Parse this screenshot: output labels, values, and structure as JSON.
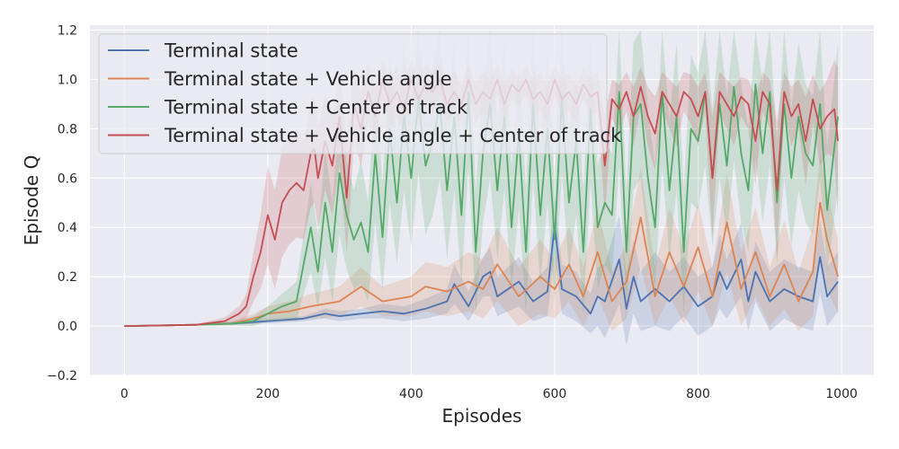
{
  "chart_data": {
    "type": "line",
    "title": "",
    "xlabel": "Episodes",
    "ylabel": "Episode Q",
    "xlim": [
      -48,
      1045
    ],
    "ylim": [
      -0.2,
      1.22
    ],
    "xticks": [
      0,
      200,
      400,
      600,
      800,
      1000
    ],
    "yticks": [
      -0.2,
      0.0,
      0.2,
      0.4,
      0.6,
      0.8,
      1.0,
      1.2
    ],
    "ytick_labels": [
      "−0.2",
      "0.0",
      "0.2",
      "0.4",
      "0.6",
      "0.8",
      "1.0",
      "1.2"
    ],
    "grid": true,
    "legend_position": "top-left",
    "background": "#eaeaf2",
    "series": [
      {
        "name": "Terminal state",
        "color": "#4c72b0",
        "x": [
          0,
          100,
          150,
          200,
          250,
          280,
          300,
          330,
          360,
          390,
          420,
          450,
          460,
          480,
          500,
          510,
          520,
          550,
          570,
          590,
          600,
          610,
          630,
          650,
          660,
          670,
          690,
          700,
          710,
          720,
          740,
          760,
          780,
          800,
          820,
          830,
          840,
          860,
          870,
          880,
          900,
          920,
          940,
          960,
          970,
          980,
          995
        ],
        "y": [
          0.0,
          0.005,
          0.01,
          0.02,
          0.03,
          0.05,
          0.04,
          0.05,
          0.06,
          0.05,
          0.07,
          0.1,
          0.17,
          0.08,
          0.2,
          0.22,
          0.12,
          0.18,
          0.1,
          0.14,
          0.41,
          0.15,
          0.12,
          0.05,
          0.12,
          0.1,
          0.27,
          0.07,
          0.2,
          0.1,
          0.15,
          0.1,
          0.16,
          0.08,
          0.12,
          0.22,
          0.15,
          0.27,
          0.1,
          0.22,
          0.1,
          0.15,
          0.12,
          0.1,
          0.28,
          0.12,
          0.18
        ],
        "band": [
          0.0,
          0.003,
          0.005,
          0.01,
          0.01,
          0.02,
          0.02,
          0.02,
          0.03,
          0.03,
          0.04,
          0.05,
          0.08,
          0.06,
          0.08,
          0.1,
          0.08,
          0.1,
          0.08,
          0.1,
          0.12,
          0.1,
          0.1,
          0.08,
          0.12,
          0.15,
          0.18,
          0.15,
          0.15,
          0.12,
          0.15,
          0.12,
          0.12,
          0.12,
          0.12,
          0.15,
          0.12,
          0.15,
          0.12,
          0.12,
          0.12,
          0.12,
          0.12,
          0.12,
          0.15,
          0.12,
          0.12
        ]
      },
      {
        "name": "Terminal state + Vehicle angle",
        "color": "#dd8452",
        "x": [
          0,
          100,
          150,
          180,
          200,
          230,
          260,
          300,
          330,
          360,
          400,
          420,
          450,
          480,
          500,
          520,
          550,
          580,
          600,
          620,
          640,
          660,
          680,
          700,
          720,
          740,
          760,
          780,
          800,
          820,
          840,
          860,
          880,
          900,
          920,
          940,
          960,
          970,
          980,
          995
        ],
        "y": [
          0.0,
          0.005,
          0.01,
          0.03,
          0.05,
          0.06,
          0.08,
          0.1,
          0.16,
          0.1,
          0.12,
          0.16,
          0.14,
          0.18,
          0.15,
          0.25,
          0.12,
          0.2,
          0.15,
          0.25,
          0.12,
          0.3,
          0.1,
          0.18,
          0.44,
          0.12,
          0.3,
          0.16,
          0.32,
          0.12,
          0.42,
          0.15,
          0.3,
          0.12,
          0.25,
          0.1,
          0.22,
          0.5,
          0.35,
          0.2
        ],
        "band": [
          0.0,
          0.003,
          0.008,
          0.02,
          0.03,
          0.04,
          0.05,
          0.06,
          0.08,
          0.06,
          0.08,
          0.1,
          0.1,
          0.12,
          0.12,
          0.15,
          0.12,
          0.15,
          0.12,
          0.15,
          0.12,
          0.18,
          0.12,
          0.15,
          0.2,
          0.12,
          0.18,
          0.15,
          0.18,
          0.12,
          0.2,
          0.15,
          0.18,
          0.12,
          0.18,
          0.12,
          0.18,
          0.2,
          0.2,
          0.15
        ]
      },
      {
        "name": "Terminal state + Center of track",
        "color": "#55a868",
        "x": [
          0,
          100,
          150,
          180,
          200,
          220,
          240,
          250,
          260,
          270,
          280,
          290,
          300,
          310,
          320,
          330,
          340,
          350,
          360,
          370,
          380,
          390,
          400,
          410,
          420,
          430,
          440,
          450,
          460,
          470,
          480,
          490,
          500,
          510,
          520,
          530,
          540,
          550,
          560,
          570,
          580,
          590,
          600,
          610,
          620,
          630,
          640,
          650,
          660,
          670,
          680,
          690,
          700,
          710,
          720,
          730,
          740,
          750,
          760,
          770,
          780,
          790,
          800,
          810,
          820,
          830,
          840,
          850,
          860,
          870,
          880,
          890,
          900,
          910,
          920,
          930,
          940,
          950,
          960,
          970,
          980,
          995
        ],
        "y": [
          0.0,
          0.005,
          0.01,
          0.02,
          0.05,
          0.08,
          0.1,
          0.25,
          0.4,
          0.22,
          0.5,
          0.3,
          0.62,
          0.45,
          0.35,
          0.42,
          0.3,
          0.7,
          0.36,
          0.8,
          0.5,
          0.85,
          0.6,
          0.92,
          0.65,
          0.75,
          0.9,
          0.55,
          0.85,
          0.45,
          0.95,
          0.3,
          0.7,
          0.9,
          0.55,
          0.85,
          0.4,
          0.78,
          0.3,
          0.9,
          0.45,
          0.8,
          0.35,
          0.92,
          0.5,
          0.75,
          0.3,
          0.88,
          0.4,
          0.5,
          0.45,
          0.95,
          0.3,
          0.85,
          0.9,
          0.6,
          0.4,
          0.95,
          0.55,
          0.85,
          0.3,
          0.8,
          0.75,
          0.95,
          0.6,
          0.9,
          0.65,
          0.97,
          0.7,
          0.55,
          0.98,
          0.7,
          0.95,
          0.5,
          0.9,
          0.6,
          0.85,
          0.7,
          0.65,
          0.9,
          0.47,
          0.85
        ],
        "band": [
          0.0,
          0.003,
          0.008,
          0.02,
          0.03,
          0.05,
          0.08,
          0.12,
          0.18,
          0.15,
          0.22,
          0.2,
          0.25,
          0.22,
          0.2,
          0.25,
          0.2,
          0.28,
          0.22,
          0.3,
          0.25,
          0.3,
          0.28,
          0.3,
          0.28,
          0.3,
          0.3,
          0.28,
          0.3,
          0.28,
          0.3,
          0.25,
          0.28,
          0.3,
          0.28,
          0.3,
          0.25,
          0.3,
          0.25,
          0.3,
          0.28,
          0.3,
          0.25,
          0.3,
          0.28,
          0.3,
          0.25,
          0.3,
          0.25,
          0.25,
          0.25,
          0.3,
          0.25,
          0.3,
          0.3,
          0.28,
          0.25,
          0.3,
          0.28,
          0.3,
          0.25,
          0.3,
          0.28,
          0.3,
          0.28,
          0.3,
          0.28,
          0.3,
          0.28,
          0.25,
          0.3,
          0.28,
          0.3,
          0.25,
          0.3,
          0.28,
          0.3,
          0.28,
          0.28,
          0.3,
          0.25,
          0.3
        ]
      },
      {
        "name": "Terminal state + Vehicle angle + Center of track",
        "color": "#c44e52",
        "x": [
          0,
          100,
          140,
          160,
          170,
          180,
          190,
          200,
          210,
          220,
          230,
          240,
          250,
          260,
          265,
          270,
          280,
          290,
          300,
          310,
          315,
          320,
          330,
          340,
          350,
          360,
          370,
          380,
          390,
          400,
          410,
          420,
          430,
          440,
          450,
          460,
          470,
          480,
          490,
          500,
          510,
          520,
          530,
          540,
          550,
          560,
          570,
          580,
          590,
          600,
          610,
          620,
          630,
          640,
          650,
          660,
          670,
          680,
          690,
          700,
          710,
          720,
          730,
          740,
          750,
          760,
          770,
          780,
          790,
          800,
          810,
          820,
          830,
          840,
          850,
          860,
          870,
          880,
          890,
          900,
          910,
          920,
          930,
          940,
          950,
          960,
          970,
          980,
          990,
          995
        ],
        "y": [
          0.0,
          0.005,
          0.02,
          0.05,
          0.08,
          0.2,
          0.3,
          0.45,
          0.35,
          0.5,
          0.55,
          0.58,
          0.55,
          0.7,
          0.72,
          0.6,
          0.75,
          0.65,
          0.85,
          0.52,
          0.7,
          0.9,
          0.8,
          0.95,
          0.85,
          1.0,
          0.9,
          0.95,
          0.88,
          1.0,
          0.92,
          0.98,
          0.95,
          1.0,
          0.9,
          0.95,
          0.9,
          1.0,
          0.9,
          0.95,
          0.92,
          1.0,
          0.9,
          0.98,
          0.95,
          1.0,
          0.92,
          0.95,
          0.9,
          1.0,
          0.92,
          0.95,
          0.9,
          0.98,
          0.93,
          0.95,
          0.65,
          0.92,
          0.88,
          0.95,
          0.85,
          0.97,
          0.85,
          0.78,
          0.95,
          0.9,
          0.85,
          0.95,
          0.92,
          0.85,
          0.95,
          0.6,
          0.95,
          0.9,
          0.85,
          0.93,
          0.9,
          0.75,
          0.95,
          0.9,
          0.55,
          0.95,
          0.85,
          0.9,
          0.75,
          0.92,
          0.8,
          0.85,
          0.88,
          0.75
        ],
        "band": [
          0.0,
          0.003,
          0.015,
          0.03,
          0.05,
          0.1,
          0.15,
          0.2,
          0.2,
          0.22,
          0.22,
          0.22,
          0.2,
          0.22,
          0.22,
          0.2,
          0.2,
          0.2,
          0.2,
          0.22,
          0.2,
          0.15,
          0.15,
          0.12,
          0.12,
          0.08,
          0.1,
          0.1,
          0.1,
          0.08,
          0.08,
          0.08,
          0.08,
          0.06,
          0.08,
          0.08,
          0.08,
          0.06,
          0.08,
          0.08,
          0.08,
          0.06,
          0.08,
          0.06,
          0.06,
          0.06,
          0.08,
          0.08,
          0.08,
          0.06,
          0.08,
          0.08,
          0.08,
          0.06,
          0.08,
          0.08,
          0.2,
          0.08,
          0.1,
          0.08,
          0.12,
          0.08,
          0.12,
          0.15,
          0.08,
          0.1,
          0.12,
          0.08,
          0.1,
          0.12,
          0.08,
          0.25,
          0.08,
          0.1,
          0.12,
          0.08,
          0.1,
          0.18,
          0.08,
          0.1,
          0.28,
          0.08,
          0.12,
          0.1,
          0.18,
          0.1,
          0.15,
          0.15,
          0.2,
          0.3
        ]
      }
    ]
  }
}
